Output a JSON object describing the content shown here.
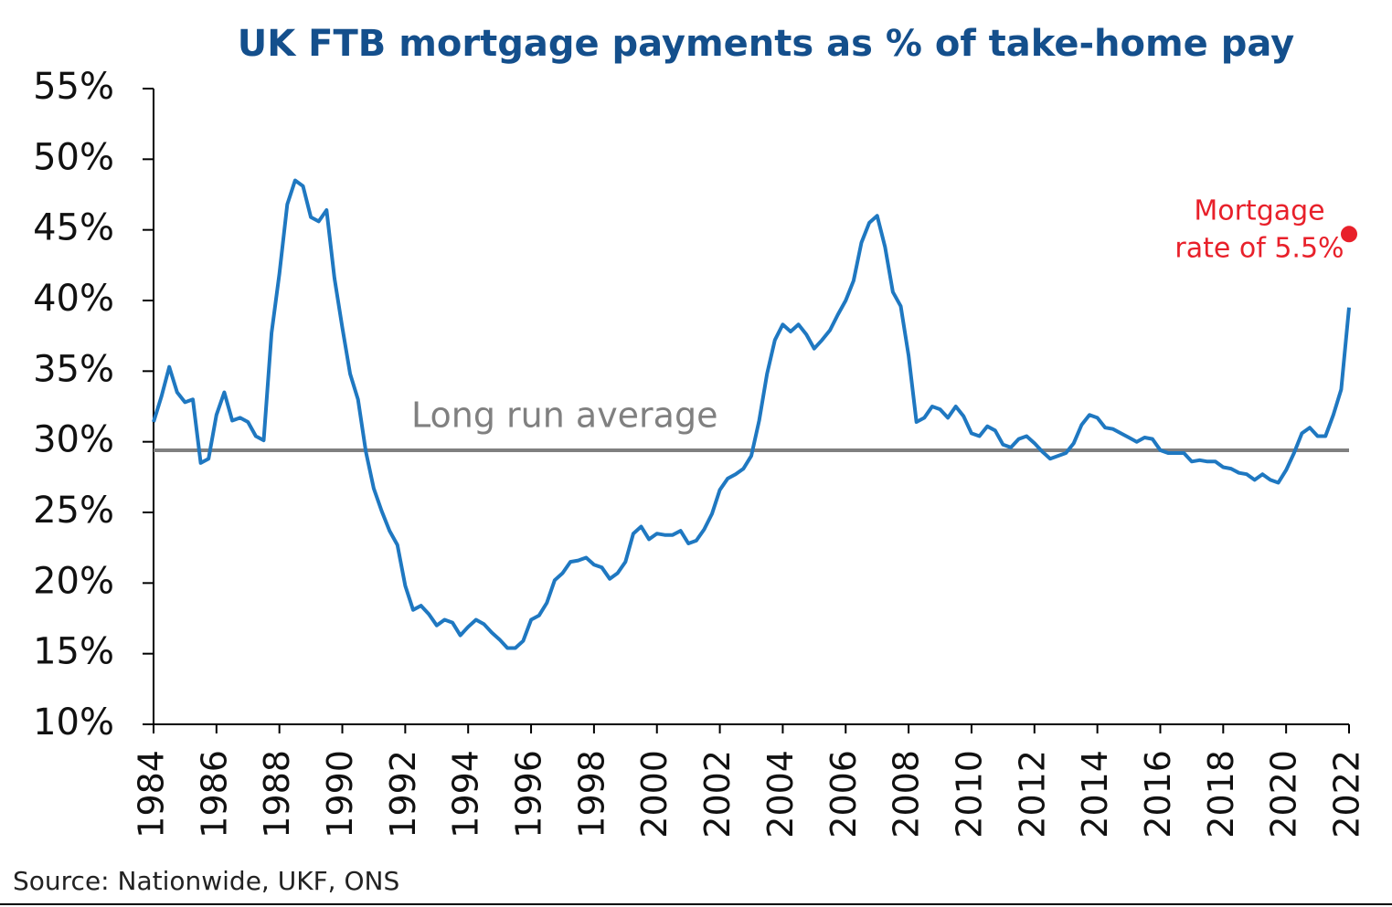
{
  "chart_data": {
    "type": "line",
    "title": "UK FTB mortgage payments as % of take-home pay",
    "source": "Source: Nationwide, UKF, ONS",
    "color": "#1f78c1",
    "xlim": [
      1984,
      2022
    ],
    "xticks": [
      1984,
      1986,
      1988,
      1990,
      1992,
      1994,
      1996,
      1998,
      2000,
      2002,
      2004,
      2006,
      2008,
      2010,
      2012,
      2014,
      2016,
      2018,
      2020,
      2022
    ],
    "ylim": [
      10,
      55
    ],
    "yticks": [
      {
        "value": 10,
        "label": "10%"
      },
      {
        "value": 15,
        "label": "15%"
      },
      {
        "value": 20,
        "label": "20%"
      },
      {
        "value": 25,
        "label": "25%"
      },
      {
        "value": 30,
        "label": "30%"
      },
      {
        "value": 35,
        "label": "35%"
      },
      {
        "value": 40,
        "label": "40%"
      },
      {
        "value": 45,
        "label": "45%"
      },
      {
        "value": 50,
        "label": "50%"
      },
      {
        "value": 55,
        "label": "55%"
      }
    ],
    "x": [
      1984,
      1984.25,
      1984.5,
      1984.75,
      1985,
      1985.25,
      1985.5,
      1985.75,
      1986,
      1986.25,
      1986.5,
      1986.75,
      1987,
      1987.25,
      1987.5,
      1987.75,
      1988,
      1988.25,
      1988.5,
      1988.75,
      1989,
      1989.25,
      1989.5,
      1989.75,
      1990,
      1990.25,
      1990.5,
      1990.75,
      1991,
      1991.25,
      1991.5,
      1991.75,
      1992,
      1992.25,
      1992.5,
      1992.75,
      1993,
      1993.25,
      1993.5,
      1993.75,
      1994,
      1994.25,
      1994.5,
      1994.75,
      1995,
      1995.25,
      1995.5,
      1995.75,
      1996,
      1996.25,
      1996.5,
      1996.75,
      1997,
      1997.25,
      1997.5,
      1997.75,
      1998,
      1998.25,
      1998.5,
      1998.75,
      1999,
      1999.25,
      1999.5,
      1999.75,
      2000,
      2000.25,
      2000.5,
      2000.75,
      2001,
      2001.25,
      2001.5,
      2001.75,
      2002,
      2002.25,
      2002.5,
      2002.75,
      2003,
      2003.25,
      2003.5,
      2003.75,
      2004,
      2004.25,
      2004.5,
      2004.75,
      2005,
      2005.25,
      2005.5,
      2005.75,
      2006,
      2006.25,
      2006.5,
      2006.75,
      2007,
      2007.25,
      2007.5,
      2007.75,
      2008,
      2008.25,
      2008.5,
      2008.75,
      2009,
      2009.25,
      2009.5,
      2009.75,
      2010,
      2010.25,
      2010.5,
      2010.75,
      2011,
      2011.25,
      2011.5,
      2011.75,
      2012,
      2012.25,
      2012.5,
      2012.75,
      2013,
      2013.25,
      2013.5,
      2013.75,
      2014,
      2014.25,
      2014.5,
      2014.75,
      2015,
      2015.25,
      2015.5,
      2015.75,
      2016,
      2016.25,
      2016.5,
      2016.75,
      2017,
      2017.25,
      2017.5,
      2017.75,
      2018,
      2018.25,
      2018.5,
      2018.75,
      2019,
      2019.25,
      2019.5,
      2019.75,
      2020,
      2020.25,
      2020.5,
      2020.75,
      2021,
      2021.25,
      2021.5,
      2021.75,
      2022
    ],
    "values": [
      31.4,
      33.2,
      35.3,
      33.5,
      32.8,
      33.0,
      28.5,
      28.8,
      31.9,
      33.5,
      31.5,
      31.7,
      31.4,
      30.4,
      30.1,
      37.7,
      41.9,
      46.8,
      48.5,
      48.1,
      45.9,
      45.6,
      46.4,
      41.6,
      38.1,
      34.8,
      33.0,
      29.3,
      26.7,
      25.1,
      23.7,
      22.7,
      19.8,
      18.1,
      18.4,
      17.8,
      17.0,
      17.4,
      17.2,
      16.3,
      16.9,
      17.4,
      17.1,
      16.5,
      16.0,
      15.4,
      15.4,
      15.9,
      17.4,
      17.7,
      18.6,
      20.2,
      20.7,
      21.5,
      21.6,
      21.8,
      21.3,
      21.1,
      20.3,
      20.7,
      21.5,
      23.5,
      24.0,
      23.1,
      23.5,
      23.4,
      23.4,
      23.7,
      22.8,
      23.0,
      23.8,
      24.9,
      26.6,
      27.4,
      27.7,
      28.1,
      29.0,
      31.5,
      34.8,
      37.2,
      38.3,
      37.8,
      38.3,
      37.6,
      36.6,
      37.2,
      37.9,
      39.0,
      40.0,
      41.4,
      44.1,
      45.5,
      46.0,
      43.8,
      40.6,
      39.6,
      36.1,
      31.4,
      31.7,
      32.5,
      32.3,
      31.7,
      32.5,
      31.8,
      30.6,
      30.4,
      31.1,
      30.8,
      29.8,
      29.6,
      30.2,
      30.4,
      29.9,
      29.3,
      28.8,
      29.0,
      29.2,
      29.9,
      31.2,
      31.9,
      31.7,
      31.0,
      30.9,
      30.6,
      30.3,
      30.0,
      30.3,
      30.2,
      29.4,
      29.2,
      29.2,
      29.2,
      28.6,
      28.7,
      28.6,
      28.6,
      28.2,
      28.1,
      27.8,
      27.7,
      27.3,
      27.7,
      27.3,
      27.1,
      28.0,
      29.2,
      30.6,
      31.0,
      30.4,
      30.4,
      31.9,
      33.7,
      39.5
    ],
    "reference_line": {
      "label": "Long run average",
      "value": 29.4,
      "color": "#808080"
    },
    "highlight_point": {
      "label": [
        "Mortgage",
        "rate of 5.5%"
      ],
      "x": 2022,
      "value": 44.7,
      "color": "#e8202a"
    }
  }
}
